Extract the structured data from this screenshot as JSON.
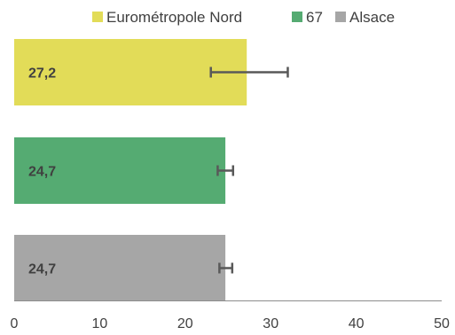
{
  "chart_data": {
    "type": "bar",
    "orientation": "horizontal",
    "categories": [
      "Eurométropole Nord",
      "67",
      "Alsace"
    ],
    "values": [
      27.2,
      24.7,
      24.7
    ],
    "data_labels": [
      "27,2",
      "24,7",
      "24,7"
    ],
    "error_bars": [
      {
        "low": 23.0,
        "high": 32.0
      },
      {
        "low": 23.8,
        "high": 25.6
      },
      {
        "low": 24.0,
        "high": 25.5
      }
    ],
    "colors": [
      "#e2dc58",
      "#55ab72",
      "#a6a6a6"
    ],
    "xlim": [
      0,
      50
    ],
    "xticks": [
      0,
      10,
      20,
      30,
      40,
      50
    ],
    "title": "",
    "xlabel": "",
    "ylabel": "",
    "grid": false,
    "legend": {
      "position": "top",
      "entries": [
        {
          "name": "Eurométropole Nord",
          "color": "#e2dc58"
        },
        {
          "name": "67",
          "color": "#55ab72"
        },
        {
          "name": "Alsace",
          "color": "#a6a6a6"
        }
      ]
    }
  }
}
